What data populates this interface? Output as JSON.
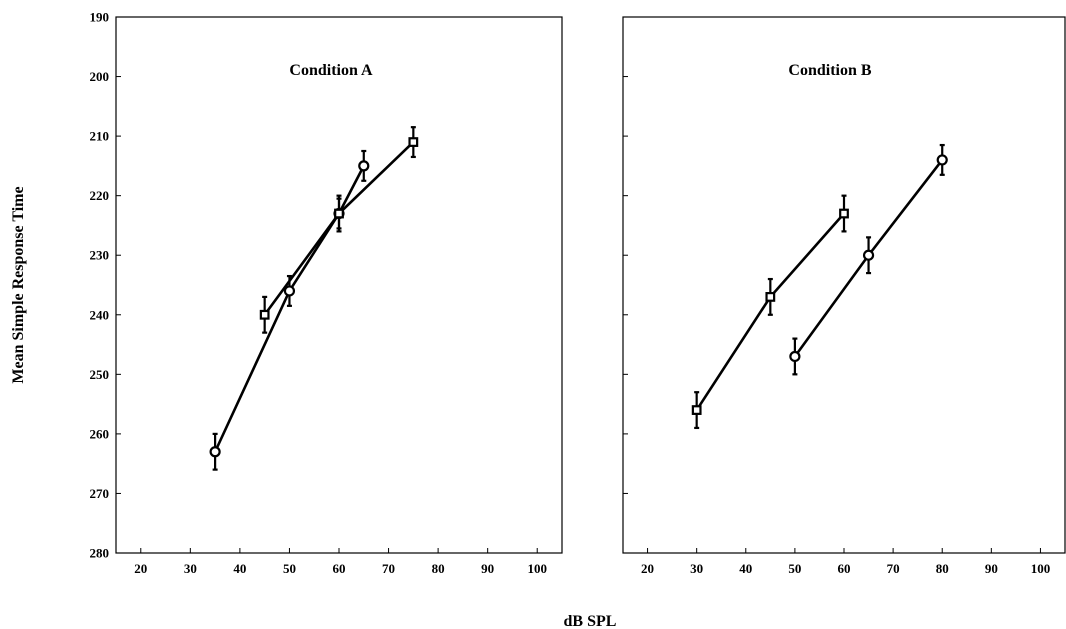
{
  "figure": {
    "ylabel": "Mean Simple Response Time",
    "xlabel": "dB SPL"
  },
  "chart_data": [
    {
      "type": "line",
      "title": "Condition A",
      "xlim": [
        15,
        105
      ],
      "ylim": [
        190,
        280
      ],
      "y_inverted": true,
      "xticks": [
        20,
        30,
        40,
        50,
        60,
        70,
        80,
        90,
        100
      ],
      "yticks": [
        190,
        200,
        210,
        220,
        230,
        240,
        250,
        260,
        270,
        280
      ],
      "series": [
        {
          "marker": "circle",
          "x": [
            35,
            50,
            60,
            65
          ],
          "y": [
            263,
            236,
            223,
            215
          ],
          "err": [
            3,
            2.5,
            2.5,
            2.5
          ]
        },
        {
          "marker": "square",
          "x": [
            45,
            60,
            75
          ],
          "y": [
            240,
            223,
            211
          ],
          "err": [
            3,
            3,
            2.5
          ]
        }
      ]
    },
    {
      "type": "line",
      "title": "Condition B",
      "xlim": [
        15,
        105
      ],
      "ylim": [
        190,
        280
      ],
      "y_inverted": true,
      "xticks": [
        20,
        30,
        40,
        50,
        60,
        70,
        80,
        90,
        100
      ],
      "yticks": [
        190,
        200,
        210,
        220,
        230,
        240,
        250,
        260,
        270,
        280
      ],
      "series": [
        {
          "marker": "square",
          "x": [
            30,
            45,
            60
          ],
          "y": [
            256,
            237,
            223
          ],
          "err": [
            3,
            3,
            3
          ]
        },
        {
          "marker": "circle",
          "x": [
            50,
            65,
            80
          ],
          "y": [
            247,
            230,
            214
          ],
          "err": [
            3,
            3,
            2.5
          ]
        }
      ]
    }
  ]
}
